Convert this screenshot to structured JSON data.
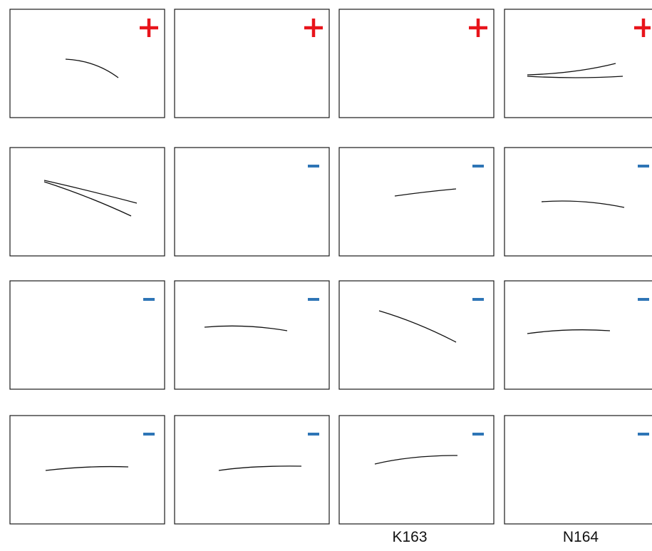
{
  "figure": {
    "panels": [
      {
        "row": 0,
        "col": 0,
        "sign": "+"
      },
      {
        "row": 0,
        "col": 1,
        "sign": "+"
      },
      {
        "row": 0,
        "col": 2,
        "sign": "+"
      },
      {
        "row": 0,
        "col": 3,
        "sign": "+"
      },
      {
        "row": 1,
        "col": 0,
        "sign": ""
      },
      {
        "row": 1,
        "col": 1,
        "sign": "-"
      },
      {
        "row": 1,
        "col": 2,
        "sign": "-"
      },
      {
        "row": 1,
        "col": 3,
        "sign": "-"
      },
      {
        "row": 2,
        "col": 0,
        "sign": "-"
      },
      {
        "row": 2,
        "col": 1,
        "sign": "-"
      },
      {
        "row": 2,
        "col": 2,
        "sign": "-"
      },
      {
        "row": 2,
        "col": 3,
        "sign": "-"
      },
      {
        "row": 3,
        "col": 0,
        "sign": "-"
      },
      {
        "row": 3,
        "col": 1,
        "sign": "-"
      },
      {
        "row": 3,
        "col": 2,
        "sign": "-"
      },
      {
        "row": 3,
        "col": 3,
        "sign": "-"
      }
    ],
    "captions": [
      {
        "col": 2,
        "text": "K163"
      },
      {
        "col": 3,
        "text": "N164"
      }
    ],
    "colors": {
      "plus": "#e8141b",
      "minus": "#2e75b6",
      "trace": "#111111",
      "frame": "#1a1a1a"
    }
  }
}
